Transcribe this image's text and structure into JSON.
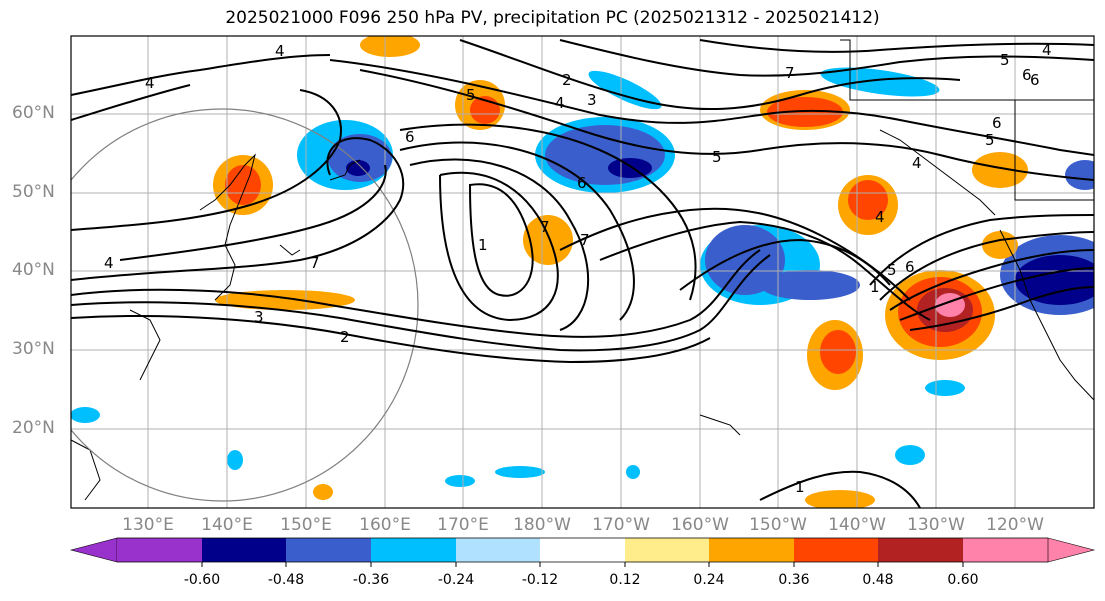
{
  "title": "2025021000 F096 250 hPa PV, precipitation PC (2025021312 - 2025021412)",
  "lat_labels": [
    "60°N",
    "50°N",
    "40°N",
    "30°N",
    "20°N"
  ],
  "lon_labels": [
    "130°E",
    "140°E",
    "150°E",
    "160°E",
    "170°E",
    "180°W",
    "170°W",
    "160°W",
    "150°W",
    "140°W",
    "130°W",
    "120°W"
  ],
  "colorbar": {
    "ticks": [
      "-0.60",
      "-0.48",
      "-0.36",
      "-0.24",
      "-0.12",
      "0.12",
      "0.24",
      "0.36",
      "0.48",
      "0.60"
    ],
    "colors": [
      "#9932cc",
      "#00008b",
      "#3a5fcd",
      "#00bfff",
      "#b0e2ff",
      "#ffffff",
      "#ffec8b",
      "#ffa500",
      "#ff4500",
      "#b22222",
      "#ff82ab"
    ]
  },
  "contour_labels": [
    "4",
    "4",
    "4",
    "4",
    "2",
    "3",
    "4",
    "5",
    "5",
    "6",
    "6",
    "6",
    "7",
    "7",
    "7",
    "6",
    "7",
    "1",
    "5",
    "1",
    "2",
    "3",
    "1",
    "6",
    "5",
    "4",
    "5",
    "4",
    "6"
  ],
  "colors": {
    "pos_weak": "#ffec8b",
    "pos_mod": "#ffa500",
    "pos_strong": "#ff4500",
    "pos_vstrong": "#b22222",
    "pos_max": "#ff82ab",
    "neg_weak": "#b0e2ff",
    "neg_mod": "#00bfff",
    "neg_strong": "#3a5fcd",
    "neg_vstrong": "#00008b"
  }
}
